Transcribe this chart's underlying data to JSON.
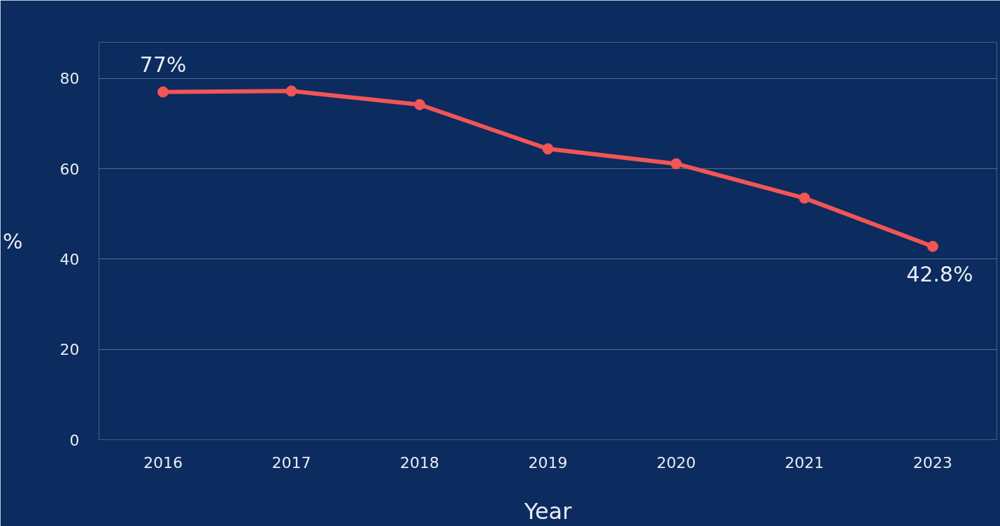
{
  "chart_data": {
    "type": "line",
    "xlabel": "Year",
    "ylabel": "%",
    "categories": [
      "2016",
      "2017",
      "2018",
      "2019",
      "2020",
      "2021",
      "2023"
    ],
    "series": [
      {
        "color": "#f25555",
        "values": [
          77,
          77.2,
          74.2,
          64.4,
          61.1,
          53.5,
          42.8
        ]
      }
    ],
    "ylim": [
      0,
      88
    ],
    "yticks": [
      0,
      20,
      40,
      60,
      80
    ],
    "grid": "y",
    "marker": "circle",
    "line_style": "solid",
    "annotations": [
      {
        "text": "77%",
        "x": "2016",
        "y": 77
      },
      {
        "text": "42.8%",
        "x": "2023",
        "y": 42.8
      }
    ]
  }
}
